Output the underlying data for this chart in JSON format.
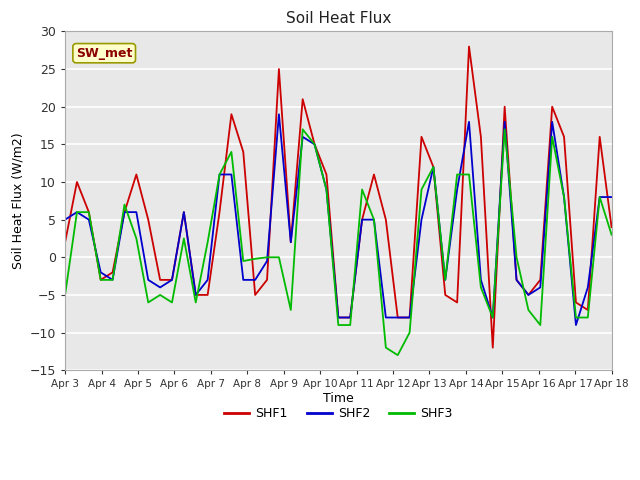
{
  "title": "Soil Heat Flux",
  "xlabel": "Time",
  "ylabel": "Soil Heat Flux (W/m2)",
  "ylim": [
    -15,
    30
  ],
  "yticks": [
    -15,
    -10,
    -5,
    0,
    5,
    10,
    15,
    20,
    25,
    30
  ],
  "x_labels": [
    "Apr 3",
    "Apr 4",
    "Apr 5",
    "Apr 6",
    "Apr 7",
    "Apr 8",
    "Apr 9",
    "Apr 10",
    "Apr 11",
    "Apr 12",
    "Apr 13",
    "Apr 14",
    "Apr 15",
    "Apr 16",
    "Apr 17",
    "Apr 18"
  ],
  "annotation": "SW_met",
  "fig_bg_color": "#ffffff",
  "plot_bg_color": "#e8e8e8",
  "shf1_color": "#cc0000",
  "shf2_color": "#0000cc",
  "shf3_color": "#00bb00",
  "legend_labels": [
    "SHF1",
    "SHF2",
    "SHF3"
  ],
  "shf1": [
    2,
    10,
    6,
    -3,
    -2,
    6,
    11,
    5,
    -3,
    -3,
    6,
    -5,
    -5,
    6,
    19,
    14,
    -5,
    -3,
    25,
    2,
    21,
    15,
    11,
    -8,
    -8,
    5,
    11,
    5,
    -8,
    -8,
    16,
    12,
    -5,
    -6,
    28,
    16,
    -12,
    20,
    -3,
    -5,
    -3,
    20,
    16,
    -6,
    -7,
    16,
    4
  ],
  "shf2": [
    5,
    6,
    5,
    -2,
    -3,
    6,
    6,
    -3,
    -4,
    -3,
    6,
    -5,
    -3,
    11,
    11,
    -3,
    -3,
    -0.5,
    19,
    2,
    16,
    15,
    9,
    -8,
    -8,
    5,
    5,
    -8,
    -8,
    -8,
    5,
    12,
    -3,
    9,
    18,
    -3,
    -8,
    18,
    -3,
    -5,
    -4,
    18,
    8,
    -9,
    -4,
    8,
    8
  ],
  "shf3": [
    -5,
    6,
    6,
    -3,
    -3,
    7,
    2.5,
    -6,
    -5,
    -6,
    2.5,
    -6,
    2,
    11,
    14,
    -0.5,
    -0.2,
    0,
    0,
    -7,
    17,
    15,
    9,
    -9,
    -9,
    9,
    5,
    -12,
    -13,
    -10,
    9,
    12,
    -3,
    11,
    11,
    -4,
    -8,
    17,
    0,
    -7,
    -9,
    16,
    8,
    -8,
    -8,
    8,
    3
  ]
}
